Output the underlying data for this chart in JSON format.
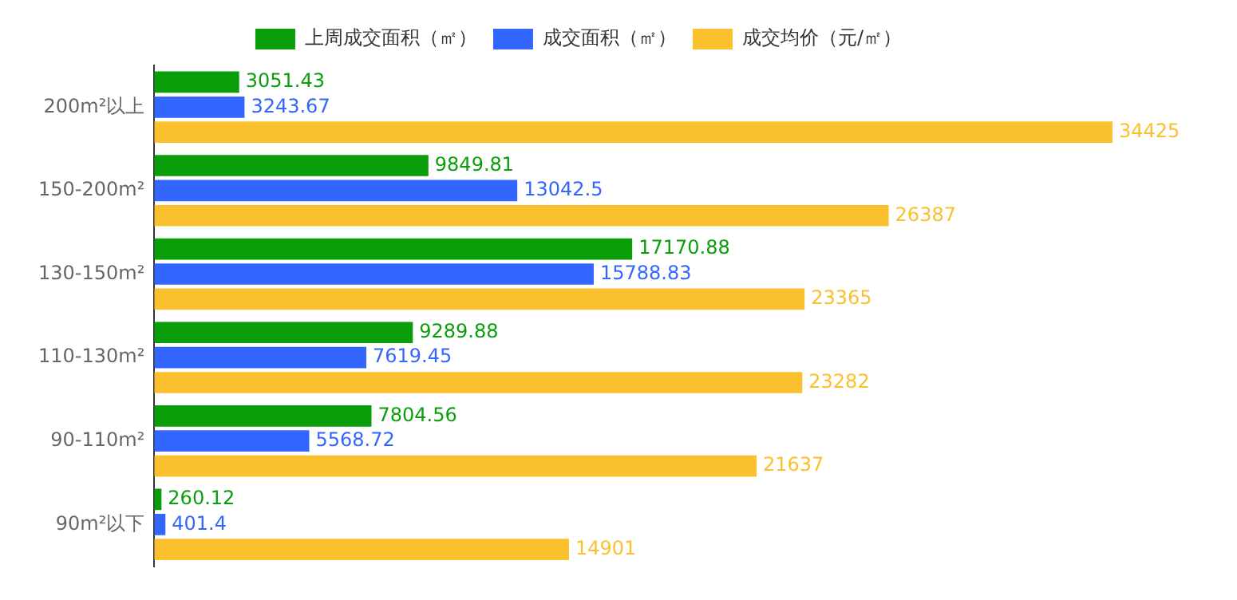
{
  "chart_data": {
    "type": "bar",
    "orientation": "horizontal",
    "categories": [
      "200m²以上",
      "150-200m²",
      "130-150m²",
      "110-130m²",
      "90-110m²",
      "90m²以下"
    ],
    "series": [
      {
        "name": "上周成交面积（㎡）",
        "color": "#0a9e0a",
        "values": [
          3051.43,
          9849.81,
          17170.88,
          9289.88,
          7804.56,
          260.12
        ]
      },
      {
        "name": "成交面积（㎡）",
        "color": "#3366ff",
        "values": [
          3243.67,
          13042.5,
          15788.83,
          7619.45,
          5568.72,
          401.4
        ]
      },
      {
        "name": "成交均价（元/㎡）",
        "color": "#fbc02d",
        "values": [
          34425,
          26387,
          23365,
          23282,
          21637,
          14901
        ]
      }
    ],
    "data_labels": true,
    "legend": "top",
    "grid": false,
    "tick_labels": "y"
  }
}
